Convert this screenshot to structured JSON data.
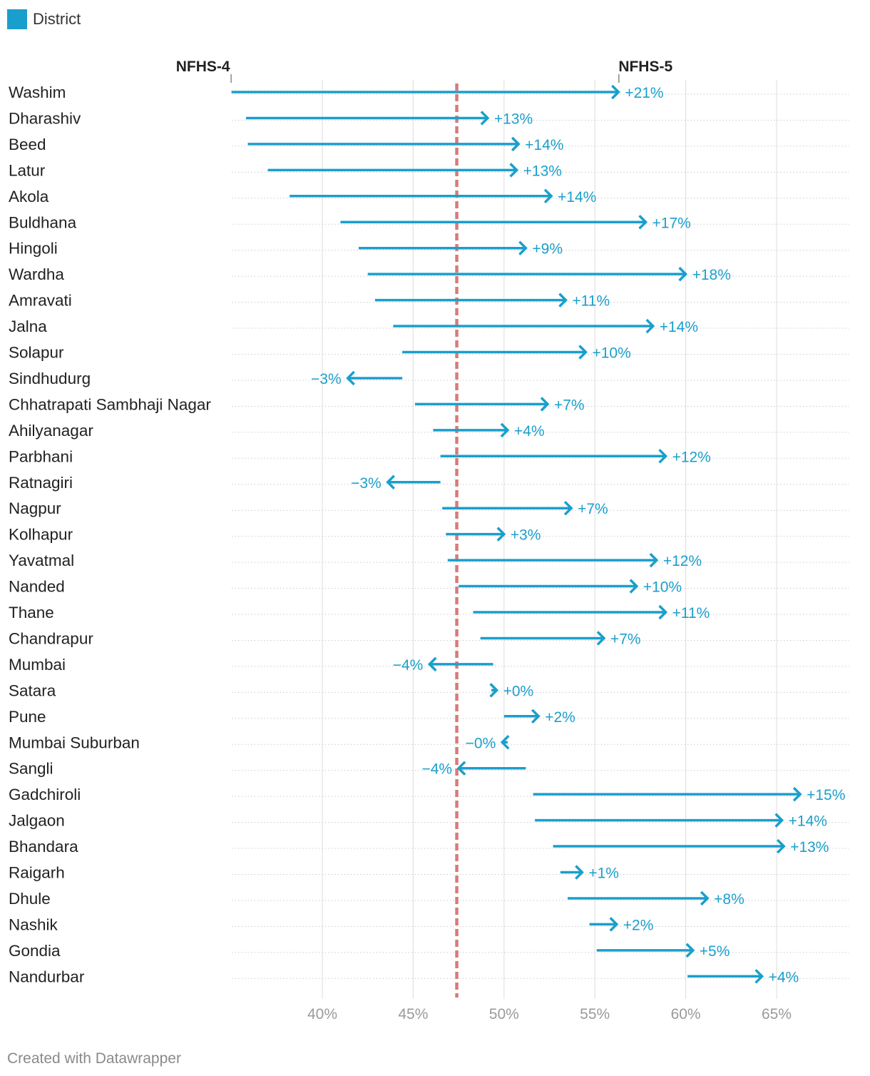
{
  "legend": {
    "label": "District",
    "color": "#1a9fcc"
  },
  "footer": {
    "credit": "Created with Datawrapper"
  },
  "colors": {
    "arrow": "#1a9fcc",
    "reference_line": "#d97a7a",
    "grid": "#e2e2e2",
    "row_rule": "#cccccc"
  },
  "chart_data": {
    "type": "arrow",
    "start_label": "NFHS-4",
    "end_label": "NFHS-5",
    "xlim": [
      34.5,
      69.5
    ],
    "x_ticks": [
      40,
      45,
      50,
      55,
      60,
      65
    ],
    "x_tick_labels": [
      "40%",
      "45%",
      "50%",
      "55%",
      "60%",
      "65%"
    ],
    "reference_line": 47.4,
    "grid": true,
    "legend_position": "top-left",
    "rows": [
      {
        "label": "Washim",
        "nfhs4": 35.0,
        "nfhs5": 56.3,
        "change": "+21%"
      },
      {
        "label": "Dharashiv",
        "nfhs4": 35.8,
        "nfhs5": 49.1,
        "change": "+13%"
      },
      {
        "label": "Beed",
        "nfhs4": 35.9,
        "nfhs5": 50.8,
        "change": "+14%"
      },
      {
        "label": "Latur",
        "nfhs4": 37.0,
        "nfhs5": 50.7,
        "change": "+13%"
      },
      {
        "label": "Akola",
        "nfhs4": 38.2,
        "nfhs5": 52.6,
        "change": "+14%"
      },
      {
        "label": "Buldhana",
        "nfhs4": 41.0,
        "nfhs5": 57.8,
        "change": "+17%"
      },
      {
        "label": "Hingoli",
        "nfhs4": 42.0,
        "nfhs5": 51.2,
        "change": "+9%"
      },
      {
        "label": "Wardha",
        "nfhs4": 42.5,
        "nfhs5": 60.0,
        "change": "+18%"
      },
      {
        "label": "Amravati",
        "nfhs4": 42.9,
        "nfhs5": 53.4,
        "change": "+11%"
      },
      {
        "label": "Jalna",
        "nfhs4": 43.9,
        "nfhs5": 58.2,
        "change": "+14%"
      },
      {
        "label": "Solapur",
        "nfhs4": 44.4,
        "nfhs5": 54.5,
        "change": "+10%"
      },
      {
        "label": "Sindhudurg",
        "nfhs4": 44.4,
        "nfhs5": 41.4,
        "change": "−3%"
      },
      {
        "label": "Chhatrapati Sambhaji Nagar",
        "nfhs4": 45.1,
        "nfhs5": 52.4,
        "change": "+7%"
      },
      {
        "label": "Ahilyanagar",
        "nfhs4": 46.1,
        "nfhs5": 50.2,
        "change": "+4%"
      },
      {
        "label": "Parbhani",
        "nfhs4": 46.5,
        "nfhs5": 58.9,
        "change": "+12%"
      },
      {
        "label": "Ratnagiri",
        "nfhs4": 46.5,
        "nfhs5": 43.6,
        "change": "−3%"
      },
      {
        "label": "Nagpur",
        "nfhs4": 46.6,
        "nfhs5": 53.7,
        "change": "+7%"
      },
      {
        "label": "Kolhapur",
        "nfhs4": 46.8,
        "nfhs5": 50.0,
        "change": "+3%"
      },
      {
        "label": "Yavatmal",
        "nfhs4": 46.9,
        "nfhs5": 58.4,
        "change": "+12%"
      },
      {
        "label": "Nanded",
        "nfhs4": 47.5,
        "nfhs5": 57.3,
        "change": "+10%"
      },
      {
        "label": "Thane",
        "nfhs4": 48.3,
        "nfhs5": 58.9,
        "change": "+11%"
      },
      {
        "label": "Chandrapur",
        "nfhs4": 48.7,
        "nfhs5": 55.5,
        "change": "+7%"
      },
      {
        "label": "Mumbai",
        "nfhs4": 49.4,
        "nfhs5": 45.9,
        "change": "−4%"
      },
      {
        "label": "Satara",
        "nfhs4": 49.3,
        "nfhs5": 49.6,
        "change": "+0%"
      },
      {
        "label": "Pune",
        "nfhs4": 50.0,
        "nfhs5": 51.9,
        "change": "+2%"
      },
      {
        "label": "Mumbai Suburban",
        "nfhs4": 50.2,
        "nfhs5": 49.9,
        "change": "−0%"
      },
      {
        "label": "Sangli",
        "nfhs4": 51.2,
        "nfhs5": 47.5,
        "change": "−4%"
      },
      {
        "label": "Gadchiroli",
        "nfhs4": 51.6,
        "nfhs5": 66.3,
        "change": "+15%"
      },
      {
        "label": "Jalgaon",
        "nfhs4": 51.7,
        "nfhs5": 65.3,
        "change": "+14%"
      },
      {
        "label": "Bhandara",
        "nfhs4": 52.7,
        "nfhs5": 65.4,
        "change": "+13%"
      },
      {
        "label": "Raigarh",
        "nfhs4": 53.1,
        "nfhs5": 54.3,
        "change": "+1%"
      },
      {
        "label": "Dhule",
        "nfhs4": 53.5,
        "nfhs5": 61.2,
        "change": "+8%"
      },
      {
        "label": "Nashik",
        "nfhs4": 54.7,
        "nfhs5": 56.2,
        "change": "+2%"
      },
      {
        "label": "Gondia",
        "nfhs4": 55.1,
        "nfhs5": 60.4,
        "change": "+5%"
      },
      {
        "label": "Nandurbar",
        "nfhs4": 60.1,
        "nfhs5": 64.2,
        "change": "+4%"
      }
    ]
  }
}
